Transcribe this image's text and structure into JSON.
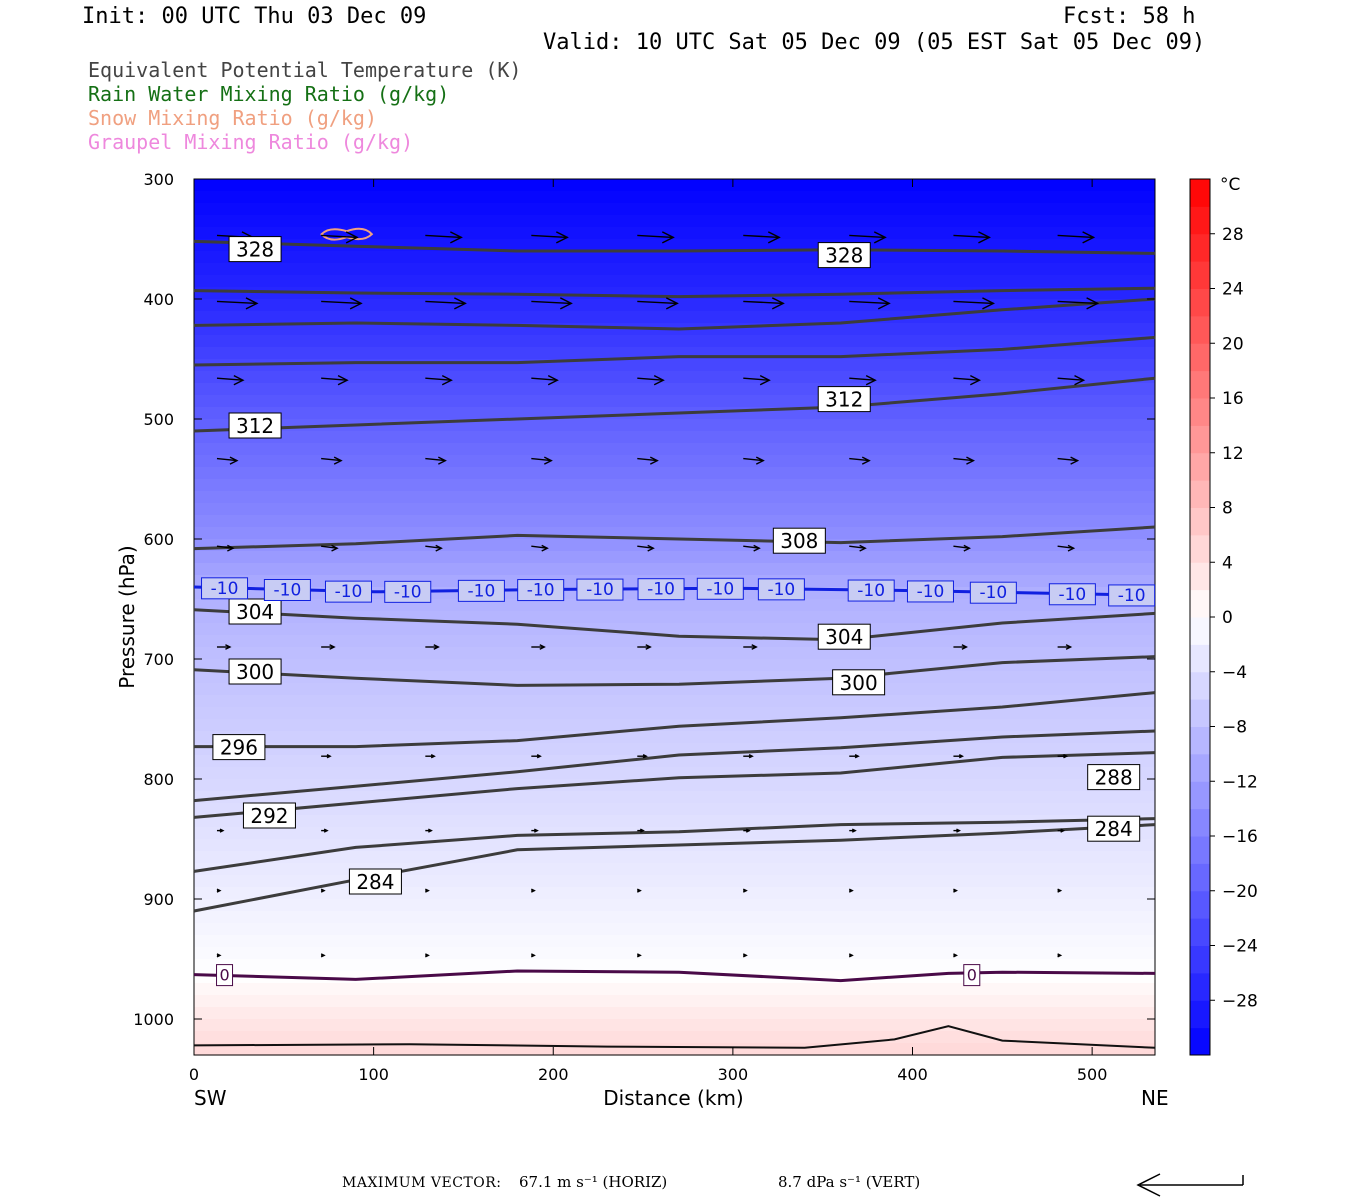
{
  "header": {
    "init": "Init: 00 UTC Thu 03 Dec 09",
    "fcst": "Fcst:   58 h",
    "valid": "Valid: 10 UTC Sat 05 Dec 09 (05 EST Sat 05 Dec 09)"
  },
  "legend": [
    {
      "label": "Equivalent Potential Temperature (K)",
      "color": "#444444"
    },
    {
      "label": "Rain Water Mixing Ratio (g/kg)",
      "color": "#157015"
    },
    {
      "label": "Snow Mixing Ratio (g/kg)",
      "color": "#f0a080"
    },
    {
      "label": "Graupel Mixing Ratio (g/kg)",
      "color": "#ee88dd"
    }
  ],
  "footer": {
    "max_vector": "MAXIMUM VECTOR:",
    "horiz": "67.1 m s⁻¹ (HORIZ)",
    "vert": "8.7 dPa s⁻¹ (VERT)"
  },
  "chart_data": {
    "type": "contour cross-section",
    "xlabel": "Distance (km)",
    "ylabel": "Pressure (hPa)",
    "x_ticks": [
      0,
      100,
      200,
      300,
      400,
      500
    ],
    "y_ticks": [
      300,
      400,
      500,
      600,
      700,
      800,
      900,
      1000
    ],
    "xlim": [
      0,
      535
    ],
    "ylim": [
      1030,
      300
    ],
    "y_scale": "linear pressure, inverted",
    "end_left": "SW",
    "end_right": "NE",
    "colorbar_unit": "°C",
    "colorbar_ticks": [
      28,
      24,
      20,
      16,
      12,
      8,
      4,
      0,
      -4,
      -8,
      -12,
      -16,
      -20,
      -24,
      -28
    ],
    "colorbar_range": [
      -32,
      32
    ],
    "colorbar_cold": "#0000ff",
    "colorbar_warm": "#ff0000",
    "theta_e_lines": [
      {
        "p": [
          352,
          356,
          360,
          360,
          359,
          360,
          362
        ]
      },
      {
        "p": [
          393,
          395,
          396,
          398,
          396,
          393,
          391
        ]
      },
      {
        "p": [
          422,
          420,
          422,
          425,
          420,
          409,
          400
        ]
      },
      {
        "p": [
          455,
          453,
          453,
          448,
          448,
          442,
          432
        ]
      },
      {
        "p": [
          510,
          505,
          500,
          495,
          490,
          479,
          466
        ]
      },
      {
        "p": [
          608,
          604,
          597,
          600,
          603,
          598,
          590
        ]
      },
      {
        "p": [
          659,
          666,
          671,
          681,
          684,
          670,
          662
        ]
      },
      {
        "p": [
          709,
          716,
          722,
          721,
          716,
          703,
          698
        ]
      },
      {
        "p": [
          773,
          773,
          768,
          756,
          749,
          740,
          728
        ]
      },
      {
        "p": [
          818,
          806,
          794,
          780,
          774,
          765,
          760
        ]
      },
      {
        "p": [
          832,
          820,
          808,
          799,
          795,
          782,
          778
        ]
      },
      {
        "p": [
          877,
          857,
          847,
          844,
          838,
          836,
          833
        ]
      },
      {
        "p": [
          910,
          884,
          859,
          855,
          851,
          845,
          838
        ]
      }
    ],
    "theta_e_x": [
      0,
      90,
      180,
      270,
      360,
      450,
      535
    ],
    "theta_e_labels": [
      {
        "text": "328",
        "x": 34,
        "p": 358
      },
      {
        "text": "328",
        "x": 362,
        "p": 363
      },
      {
        "text": "312",
        "x": 34,
        "p": 505
      },
      {
        "text": "312",
        "x": 362,
        "p": 483
      },
      {
        "text": "308",
        "x": 337,
        "p": 601
      },
      {
        "text": "304",
        "x": 34,
        "p": 660
      },
      {
        "text": "304",
        "x": 362,
        "p": 681
      },
      {
        "text": "300",
        "x": 34,
        "p": 710
      },
      {
        "text": "300",
        "x": 370,
        "p": 719
      },
      {
        "text": "296",
        "x": 25,
        "p": 773
      },
      {
        "text": "292",
        "x": 42,
        "p": 830
      },
      {
        "text": "288",
        "x": 512,
        "p": 798
      },
      {
        "text": "284",
        "x": 512,
        "p": 841
      },
      {
        "text": "284",
        "x": 101,
        "p": 885
      }
    ],
    "isotherm_minus10": {
      "x": [
        0,
        100,
        200,
        300,
        400,
        535
      ],
      "p": [
        640,
        644,
        642,
        641,
        643,
        647
      ]
    },
    "isotherm_minus10_label": "-10",
    "isotherm_minus10_label_x": [
      17,
      52,
      86,
      119,
      160,
      193,
      226,
      260,
      293,
      327,
      377,
      410,
      445,
      489,
      522
    ],
    "isotherm_zero": {
      "x": [
        0,
        90,
        180,
        270,
        360,
        420,
        450,
        535
      ],
      "p": [
        963,
        967,
        960,
        961,
        968,
        962,
        961,
        962
      ]
    },
    "isotherm_zero_label": "0",
    "isotherm_zero_label_x": [
      17,
      433
    ],
    "terrain": {
      "x": [
        0,
        120,
        230,
        340,
        390,
        420,
        450,
        535
      ],
      "p": [
        1022,
        1021,
        1023,
        1024,
        1017,
        1006,
        1018,
        1024
      ]
    },
    "snow_contour": {
      "x": [
        71,
        99
      ],
      "p": [
        346,
        346
      ]
    },
    "vector_rows": [
      {
        "p": 347,
        "len": 36
      },
      {
        "p": 402,
        "len": 40
      },
      {
        "p": 466,
        "len": 26
      },
      {
        "p": 533,
        "len": 20
      },
      {
        "p": 606,
        "len": 16
      },
      {
        "p": 690,
        "len": 13
      },
      {
        "p": 781,
        "len": 9
      },
      {
        "p": 843,
        "len": 6
      },
      {
        "p": 893,
        "len": 3
      },
      {
        "p": 947,
        "len": 3
      }
    ]
  }
}
